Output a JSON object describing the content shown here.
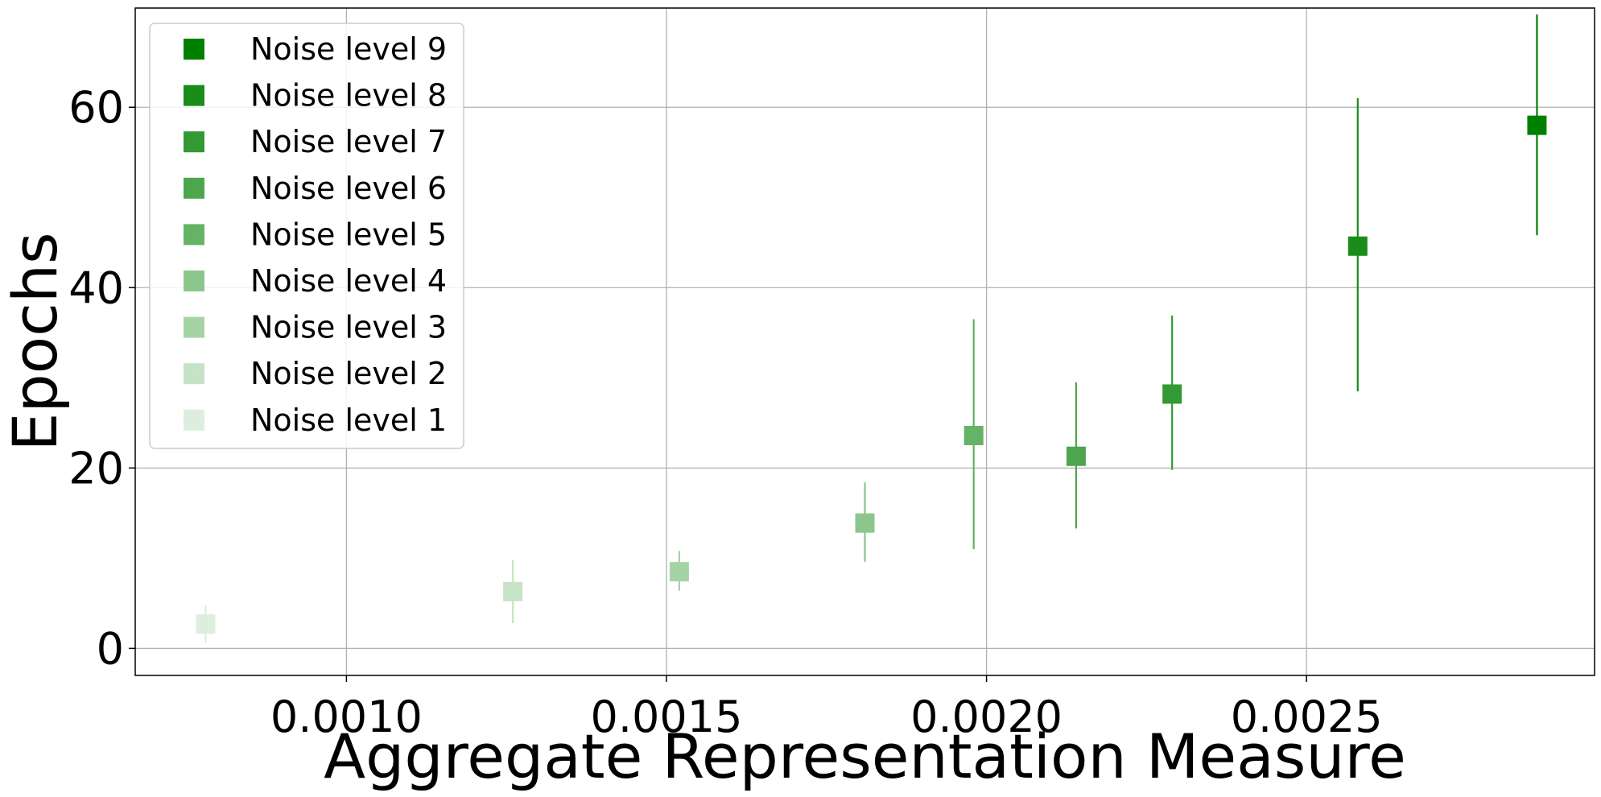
{
  "chart_data": {
    "type": "scatter",
    "xlabel": "Aggregate Representation Measure",
    "ylabel": "Epochs",
    "xlim": [
      0.00067,
      0.00295
    ],
    "ylim": [
      -3,
      71
    ],
    "xticks": [
      {
        "value": 0.001,
        "label": "0.0010"
      },
      {
        "value": 0.0015,
        "label": "0.0015"
      },
      {
        "value": 0.002,
        "label": "0.0020"
      },
      {
        "value": 0.0025,
        "label": "0.0025"
      }
    ],
    "yticks": [
      {
        "value": 0,
        "label": "0"
      },
      {
        "value": 20,
        "label": "20"
      },
      {
        "value": 40,
        "label": "40"
      },
      {
        "value": 60,
        "label": "60"
      }
    ],
    "grid": true,
    "legend_position": "top-left",
    "series": [
      {
        "name": "Noise level 9",
        "color": "#008000",
        "x": 0.00286,
        "y": 58.0,
        "err_low": 45.8,
        "err_high": 70.3
      },
      {
        "name": "Noise level 8",
        "color": "#1a8c1a",
        "x": 0.00258,
        "y": 44.6,
        "err_low": 28.5,
        "err_high": 61.0
      },
      {
        "name": "Noise level 7",
        "color": "#339933",
        "x": 0.00229,
        "y": 28.2,
        "err_low": 19.8,
        "err_high": 36.9
      },
      {
        "name": "Noise level 6",
        "color": "#4da64d",
        "x": 0.00214,
        "y": 21.3,
        "err_low": 13.3,
        "err_high": 29.5
      },
      {
        "name": "Noise level 5",
        "color": "#66b266",
        "x": 0.00198,
        "y": 23.6,
        "err_low": 11.0,
        "err_high": 36.5
      },
      {
        "name": "Noise level 4",
        "color": "#8cc68c",
        "x": 0.00181,
        "y": 13.9,
        "err_low": 9.6,
        "err_high": 18.4
      },
      {
        "name": "Noise level 3",
        "color": "#a6d3a6",
        "x": 0.00152,
        "y": 8.5,
        "err_low": 6.4,
        "err_high": 10.8
      },
      {
        "name": "Noise level 2",
        "color": "#c6e3c6",
        "x": 0.00126,
        "y": 6.3,
        "err_low": 2.8,
        "err_high": 9.8
      },
      {
        "name": "Noise level 1",
        "color": "#deeede",
        "x": 0.00078,
        "y": 2.7,
        "err_low": 0.6,
        "err_high": 4.8
      }
    ]
  }
}
